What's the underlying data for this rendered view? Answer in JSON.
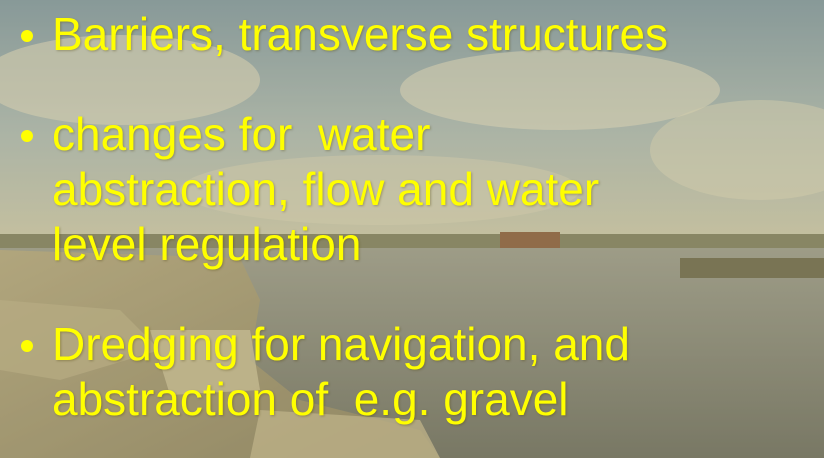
{
  "bullets": [
    {
      "lines": [
        "Barriers, transverse structures"
      ]
    },
    {
      "lines": [
        "changes for  water",
        "abstraction, flow and water",
        "level regulation"
      ]
    },
    {
      "lines": [
        "Dredging for navigation, and",
        "abstraction of  e.g. gravel"
      ]
    }
  ]
}
